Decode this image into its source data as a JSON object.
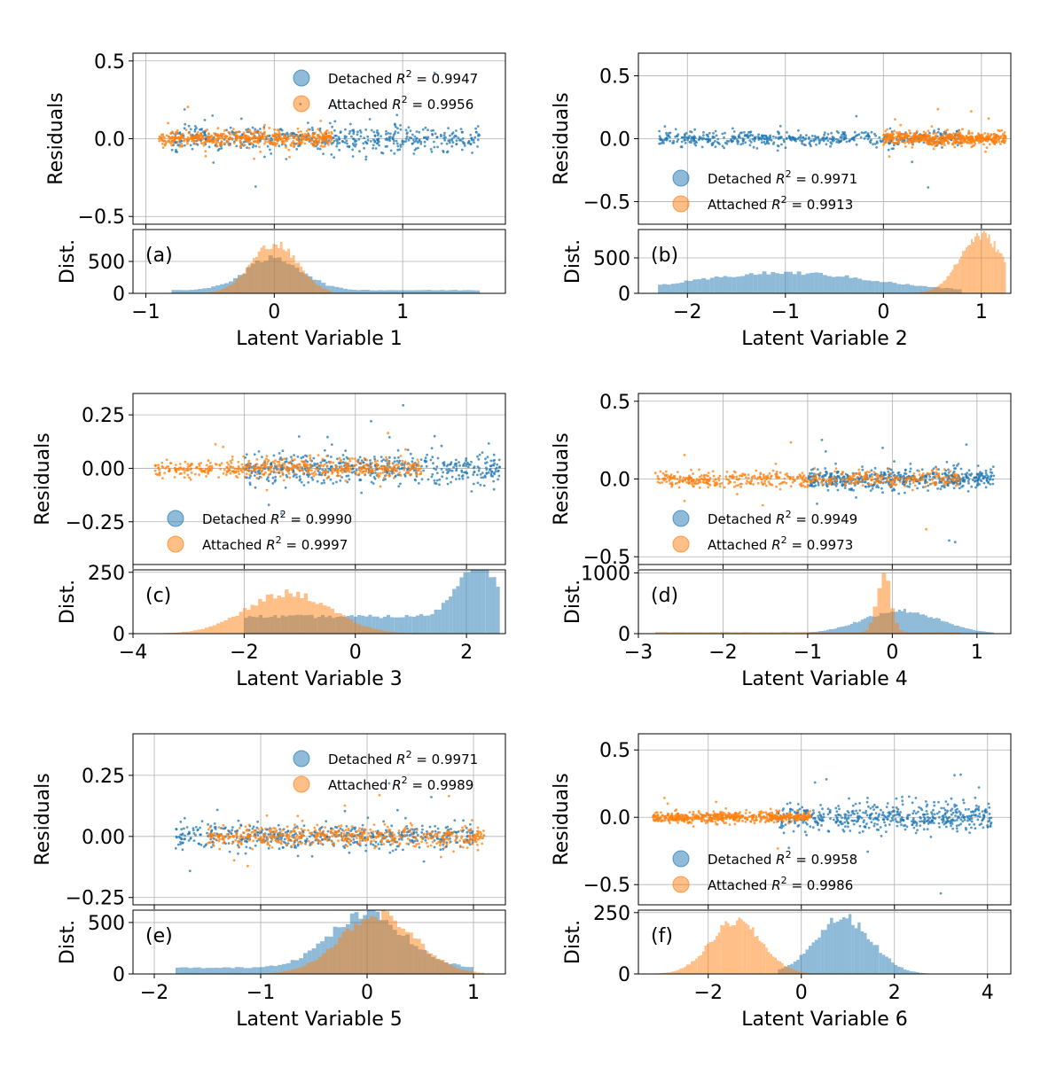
{
  "colors": {
    "detached": "#1f77b4",
    "attached": "#ff7f0e",
    "grid": "#b0b0b0"
  },
  "legend_labels": {
    "detached": "Detached",
    "attached": "Attached"
  },
  "chart_data": [
    {
      "type": "scatter",
      "panel_label": "(a)",
      "xlabel": "Latent Variable 1",
      "ylabel_top": "Residuals",
      "ylabel_bottom": "Dist.",
      "xlim": [
        -1.1,
        1.8
      ],
      "xticks": [
        -1,
        0,
        1
      ],
      "residual_ylim": [
        -0.55,
        0.55
      ],
      "residual_yticks": [
        -0.5,
        0.0,
        0.5
      ],
      "residual_ytick_labels": [
        "−0.5",
        "0.0",
        "0.5"
      ],
      "dist_ylim": [
        0,
        1000
      ],
      "dist_yticks": [
        0,
        500
      ],
      "legend_loc": "upper right",
      "series": [
        {
          "name": "Detached",
          "r2": "0.9947",
          "x_range": [
            -0.8,
            1.6
          ],
          "spread": 0.04,
          "dist_peak": 500,
          "dist_center": 0.0,
          "dist_width": 0.22,
          "dist_tail": 50
        },
        {
          "name": "Attached",
          "r2": "0.9956",
          "x_range": [
            -0.9,
            0.45
          ],
          "spread": 0.025,
          "dist_peak": 780,
          "dist_center": 0.0,
          "dist_width": 0.18,
          "dist_tail": 0
        }
      ]
    },
    {
      "type": "scatter",
      "panel_label": "(b)",
      "xlabel": "Latent Variable 2",
      "ylabel_top": "Residuals",
      "ylabel_bottom": "Dist.",
      "xlim": [
        -2.5,
        1.3
      ],
      "xticks": [
        -2,
        -1,
        0,
        1
      ],
      "residual_ylim": [
        -0.68,
        0.68
      ],
      "residual_yticks": [
        -0.5,
        0.0,
        0.5
      ],
      "residual_ytick_labels": [
        "−0.5",
        "0.0",
        "0.5"
      ],
      "dist_ylim": [
        0,
        900
      ],
      "dist_yticks": [
        0,
        500
      ],
      "legend_loc": "lower left",
      "series": [
        {
          "name": "Detached",
          "r2": "0.9971",
          "x_range": [
            -2.3,
            0.8
          ],
          "spread": 0.03,
          "dist_peak": 270,
          "dist_center": -1.0,
          "dist_width": 0.9,
          "dist_tail": 20
        },
        {
          "name": "Attached",
          "r2": "0.9913",
          "x_range": [
            0.0,
            1.25
          ],
          "spread": 0.025,
          "dist_peak": 820,
          "dist_center": 1.0,
          "dist_width": 0.22,
          "dist_tail": 0
        }
      ]
    },
    {
      "type": "scatter",
      "panel_label": "(c)",
      "xlabel": "Latent Variable 3",
      "ylabel_top": "Residuals",
      "ylabel_bottom": "Dist.",
      "xlim": [
        -4.0,
        2.7
      ],
      "xticks": [
        -4,
        -2,
        0,
        2
      ],
      "residual_ylim": [
        -0.45,
        0.35
      ],
      "residual_yticks": [
        -0.25,
        0.0,
        0.25
      ],
      "residual_ytick_labels": [
        "−0.25",
        "0.00",
        "0.25"
      ],
      "dist_ylim": [
        0,
        260
      ],
      "dist_yticks": [
        0,
        250
      ],
      "legend_loc": "lower left",
      "series": [
        {
          "name": "Detached",
          "r2": "0.9990",
          "x_range": [
            -2.0,
            2.6
          ],
          "spread": 0.035,
          "dist_peak": 230,
          "dist_center": 2.2,
          "dist_width": 0.35,
          "dist_tail": 70
        },
        {
          "name": "Attached",
          "r2": "0.9997",
          "x_range": [
            -3.6,
            1.2
          ],
          "spread": 0.02,
          "dist_peak": 165,
          "dist_center": -1.2,
          "dist_width": 0.75,
          "dist_tail": 0
        }
      ]
    },
    {
      "type": "scatter",
      "panel_label": "(d)",
      "xlabel": "Latent Variable 4",
      "ylabel_top": "Residuals",
      "ylabel_bottom": "Dist.",
      "xlim": [
        -3.0,
        1.4
      ],
      "xticks": [
        -3,
        -2,
        -1,
        0,
        1
      ],
      "residual_ylim": [
        -0.55,
        0.55
      ],
      "residual_yticks": [
        -0.5,
        0.0,
        0.5
      ],
      "residual_ytick_labels": [
        "−0.5",
        "0.0",
        "0.5"
      ],
      "dist_ylim": [
        0,
        1050
      ],
      "dist_yticks": [
        0,
        1000
      ],
      "legend_loc": "lower left",
      "series": [
        {
          "name": "Detached",
          "r2": "0.9949",
          "x_range": [
            -1.0,
            1.2
          ],
          "spread": 0.035,
          "dist_peak": 380,
          "dist_center": 0.1,
          "dist_width": 0.45,
          "dist_tail": 0
        },
        {
          "name": "Attached",
          "r2": "0.9973",
          "x_range": [
            -2.8,
            0.8
          ],
          "spread": 0.025,
          "dist_peak": 980,
          "dist_center": -0.1,
          "dist_width": 0.08,
          "dist_tail": 25
        }
      ]
    },
    {
      "type": "scatter",
      "panel_label": "(e)",
      "xlabel": "Latent Variable 5",
      "ylabel_top": "Residuals",
      "ylabel_bottom": "Dist.",
      "xlim": [
        -2.2,
        1.3
      ],
      "xticks": [
        -2,
        -1,
        0,
        1
      ],
      "residual_ylim": [
        -0.28,
        0.42
      ],
      "residual_yticks": [
        -0.25,
        0.0,
        0.25
      ],
      "residual_ytick_labels": [
        "−0.25",
        "0.00",
        "0.25"
      ],
      "dist_ylim": [
        0,
        620
      ],
      "dist_yticks": [
        0,
        500
      ],
      "legend_loc": "upper right",
      "series": [
        {
          "name": "Detached",
          "r2": "0.9971",
          "x_range": [
            -1.8,
            1.0
          ],
          "spread": 0.025,
          "dist_peak": 520,
          "dist_center": 0.0,
          "dist_width": 0.35,
          "dist_tail": 60
        },
        {
          "name": "Attached",
          "r2": "0.9989",
          "x_range": [
            -1.5,
            1.1
          ],
          "spread": 0.02,
          "dist_peak": 580,
          "dist_center": 0.1,
          "dist_width": 0.35,
          "dist_tail": 0
        }
      ]
    },
    {
      "type": "scatter",
      "panel_label": "(f)",
      "xlabel": "Latent Variable 6",
      "ylabel_top": "Residuals",
      "ylabel_bottom": "Dist.",
      "xlim": [
        -3.5,
        4.5
      ],
      "xticks": [
        -2,
        0,
        2,
        4
      ],
      "residual_ylim": [
        -0.65,
        0.62
      ],
      "residual_yticks": [
        -0.5,
        0.0,
        0.5
      ],
      "residual_ytick_labels": [
        "−0.5",
        "0.0",
        "0.5"
      ],
      "dist_ylim": [
        0,
        260
      ],
      "dist_yticks": [
        0,
        250
      ],
      "legend_loc": "lower left",
      "series": [
        {
          "name": "Detached",
          "r2": "0.9958",
          "x_range": [
            -0.5,
            4.1
          ],
          "spread": 0.05,
          "dist_peak": 230,
          "dist_center": 0.9,
          "dist_width": 0.6,
          "dist_tail": 0
        },
        {
          "name": "Attached",
          "r2": "0.9986",
          "x_range": [
            -3.2,
            0.2
          ],
          "spread": 0.02,
          "dist_peak": 215,
          "dist_center": -1.4,
          "dist_width": 0.55,
          "dist_tail": 0
        }
      ]
    }
  ]
}
